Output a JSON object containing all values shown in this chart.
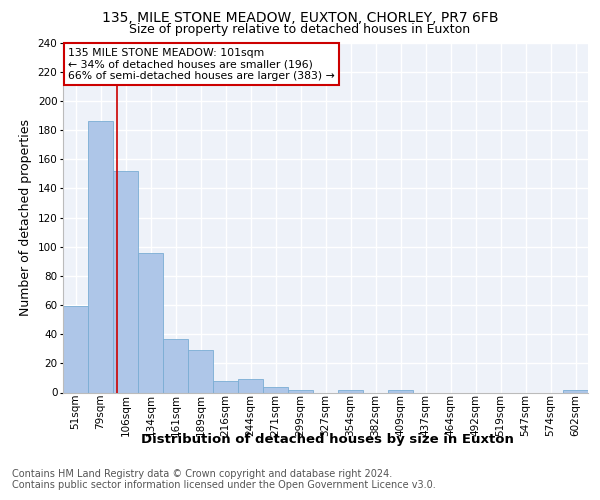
{
  "title1": "135, MILE STONE MEADOW, EUXTON, CHORLEY, PR7 6FB",
  "title2": "Size of property relative to detached houses in Euxton",
  "xlabel": "Distribution of detached houses by size in Euxton",
  "ylabel": "Number of detached properties",
  "categories": [
    "51sqm",
    "79sqm",
    "106sqm",
    "134sqm",
    "161sqm",
    "189sqm",
    "216sqm",
    "244sqm",
    "271sqm",
    "299sqm",
    "327sqm",
    "354sqm",
    "382sqm",
    "409sqm",
    "437sqm",
    "464sqm",
    "492sqm",
    "519sqm",
    "547sqm",
    "574sqm",
    "602sqm"
  ],
  "values": [
    59,
    186,
    152,
    96,
    37,
    29,
    8,
    9,
    4,
    2,
    0,
    2,
    0,
    2,
    0,
    0,
    0,
    0,
    0,
    0,
    2
  ],
  "bar_color": "#aec6e8",
  "bar_edge_color": "#7aadd4",
  "red_line_x": 1.65,
  "annotation_text": "135 MILE STONE MEADOW: 101sqm\n← 34% of detached houses are smaller (196)\n66% of semi-detached houses are larger (383) →",
  "annotation_box_color": "#cc0000",
  "ylim": [
    0,
    240
  ],
  "yticks": [
    0,
    20,
    40,
    60,
    80,
    100,
    120,
    140,
    160,
    180,
    200,
    220,
    240
  ],
  "footnote1": "Contains HM Land Registry data © Crown copyright and database right 2024.",
  "footnote2": "Contains public sector information licensed under the Open Government Licence v3.0.",
  "bg_color": "#eef2f9",
  "grid_color": "#ffffff",
  "title1_fontsize": 10,
  "title2_fontsize": 9,
  "axis_label_fontsize": 9,
  "tick_fontsize": 7.5,
  "footnote_fontsize": 7,
  "annot_fontsize": 7.8
}
